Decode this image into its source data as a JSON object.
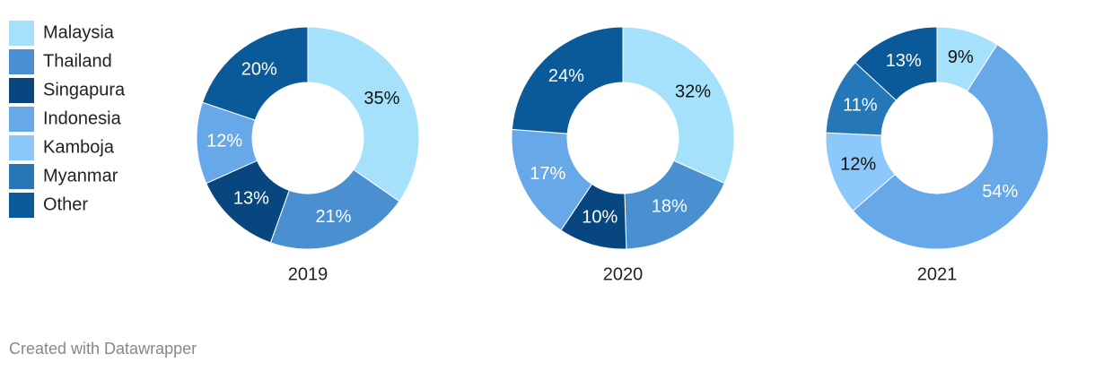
{
  "chart_data": {
    "type": "donut",
    "categories": [
      "Malaysia",
      "Thailand",
      "Singapura",
      "Indonesia",
      "Kamboja",
      "Myanmar",
      "Other"
    ],
    "colors": [
      "#a6e1fb",
      "#4a90d0",
      "#08467f",
      "#67a9e8",
      "#8cc8fb",
      "#2677b8",
      "#0a5a99"
    ],
    "series": [
      {
        "name": "2019",
        "values": [
          35,
          21,
          13,
          12,
          null,
          null,
          20
        ],
        "value_labels": [
          "35%",
          "21%",
          "13%",
          "12%",
          null,
          null,
          "20%"
        ]
      },
      {
        "name": "2020",
        "values": [
          32,
          18,
          10,
          17,
          null,
          null,
          24
        ],
        "value_labels": [
          "32%",
          "18%",
          "10%",
          "17%",
          null,
          null,
          "24%"
        ]
      },
      {
        "name": "2021",
        "values": [
          9,
          null,
          null,
          54,
          12,
          11,
          13
        ],
        "value_labels": [
          "9%",
          null,
          null,
          "54%",
          "12%",
          "11%",
          "13%"
        ]
      }
    ],
    "credit": "Created with Datawrapper"
  }
}
